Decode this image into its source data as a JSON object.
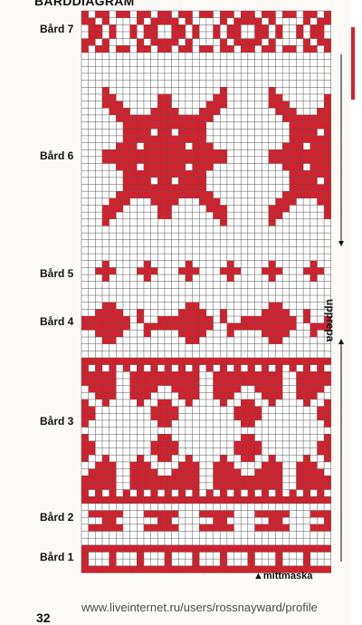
{
  "title": "BÅRDDIAGRAM",
  "bands": [
    {
      "id": "band7",
      "label": "Bård 7"
    },
    {
      "id": "band6",
      "label": "Bård 6"
    },
    {
      "id": "band5",
      "label": "Bård 5"
    },
    {
      "id": "band4",
      "label": "Bård 4"
    },
    {
      "id": "band3",
      "label": "Bård 3"
    },
    {
      "id": "band2",
      "label": "Bård 2"
    },
    {
      "id": "band1",
      "label": "Bård 1"
    }
  ],
  "side_label": "upprepa",
  "center_label": "mittmaska",
  "page_number": "32",
  "footer_url": "www.liveinternet.ru/users/rossnayward/profile",
  "colors": {
    "pattern": "#d51f2b",
    "grid": "#555555",
    "background": "#ffffff"
  }
}
